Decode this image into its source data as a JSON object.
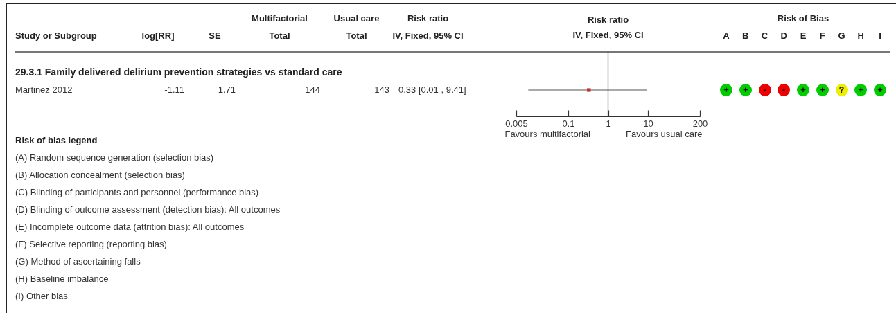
{
  "chart_data": [
    {
      "type": "other",
      "title": "29.3.1 Family delivered delirium prevention strategies vs standard care",
      "annotations": [
        "Multifactorial",
        "Usual care",
        "Risk ratio",
        "Study or Subgroup",
        "log[RR]",
        "SE",
        "Total",
        "Total",
        "IV, Fixed, 95% CI",
        "-1.11",
        "1.71",
        "144",
        "143",
        "0.33 [0.01 , 9.41]"
      ]
    },
    {
      "type": "scatter",
      "title": "Risk ratio",
      "subtitle": "IV, Fixed, 95% CI",
      "orientation": "horizontal",
      "categories": [
        "Martinez 2012"
      ],
      "values": [
        0.33
      ],
      "errors": [
        [
          0.01,
          9.41
        ]
      ],
      "color": "#cc0000",
      "marker": "square",
      "log": "x",
      "tick_labels": "x",
      "xlim": [
        0.005,
        200
      ],
      "xticks": [
        0.005,
        0.1,
        1,
        10,
        200
      ],
      "ref_lines": [
        {
          "axis": "x",
          "value": 1
        }
      ],
      "annotations": [
        "Favours multifactorial",
        "Favours usual care"
      ]
    },
    {
      "type": "other",
      "title": "Risk of Bias",
      "categories": [
        "A",
        "B",
        "C",
        "D",
        "E",
        "F",
        "G",
        "H",
        "I"
      ],
      "annotations": [
        "+",
        "+",
        "-",
        "-",
        "+",
        "+",
        "?",
        "+",
        "+"
      ],
      "colors": [
        "#00cc00",
        "#00cc00",
        "#ee0000",
        "#ee0000",
        "#00cc00",
        "#00cc00",
        "#eeee00",
        "#00cc00",
        "#00cc00"
      ]
    },
    {
      "type": "other",
      "title": "Risk of bias legend",
      "annotations": [
        "(A) Random sequence generation (selection bias)",
        "(B) Allocation concealment (selection bias)",
        "(C) Blinding of participants and personnel (performance bias)",
        "(D) Blinding of outcome assessment (detection bias): All outcomes",
        "(E) Incomplete outcome data (attrition bias): All outcomes",
        "(F) Selective reporting (reporting bias)",
        "(G) Method of ascertaining falls",
        "(H) Baseline imbalance",
        "(I) Other bias"
      ]
    }
  ]
}
